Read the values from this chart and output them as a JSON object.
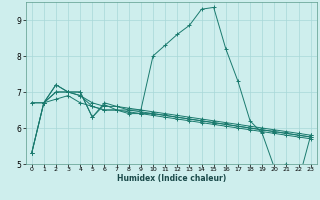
{
  "xlabel": "Humidex (Indice chaleur)",
  "bg_color": "#ceeeed",
  "grid_color": "#a8d8d8",
  "line_color": "#1a7a6e",
  "xlim": [
    -0.5,
    23.5
  ],
  "ylim": [
    5.0,
    9.5
  ],
  "yticks": [
    5,
    6,
    7,
    8,
    9
  ],
  "xticks": [
    0,
    1,
    2,
    3,
    4,
    5,
    6,
    7,
    8,
    9,
    10,
    11,
    12,
    13,
    14,
    15,
    16,
    17,
    18,
    19,
    20,
    21,
    22,
    23
  ],
  "series": [
    [
      5.3,
      6.7,
      7.2,
      7.0,
      7.0,
      6.3,
      6.7,
      6.6,
      6.5,
      6.5,
      8.0,
      8.3,
      8.6,
      8.85,
      9.3,
      9.35,
      8.2,
      7.3,
      6.2,
      5.85,
      4.9,
      5.0,
      4.55,
      5.8
    ],
    [
      5.3,
      6.7,
      7.0,
      7.0,
      6.9,
      6.6,
      6.5,
      6.5,
      6.4,
      6.4,
      6.4,
      6.35,
      6.3,
      6.25,
      6.2,
      6.15,
      6.1,
      6.05,
      6.0,
      5.95,
      5.9,
      5.85,
      5.8,
      5.75
    ],
    [
      6.7,
      6.7,
      6.8,
      6.9,
      6.7,
      6.6,
      6.5,
      6.5,
      6.45,
      6.4,
      6.35,
      6.3,
      6.25,
      6.2,
      6.15,
      6.1,
      6.05,
      6.0,
      5.95,
      5.9,
      5.85,
      5.8,
      5.75,
      5.7
    ],
    [
      6.7,
      6.7,
      7.0,
      7.0,
      6.9,
      6.7,
      6.6,
      6.6,
      6.55,
      6.5,
      6.45,
      6.4,
      6.35,
      6.3,
      6.25,
      6.2,
      6.15,
      6.1,
      6.05,
      6.0,
      5.95,
      5.9,
      5.85,
      5.8
    ],
    [
      5.3,
      6.7,
      7.2,
      7.0,
      7.0,
      6.3,
      6.65,
      6.5,
      6.5,
      6.45,
      6.4,
      6.35,
      6.3,
      6.25,
      6.2,
      6.15,
      6.1,
      6.05,
      6.0,
      5.95,
      5.9,
      5.85,
      5.8,
      5.75
    ]
  ]
}
